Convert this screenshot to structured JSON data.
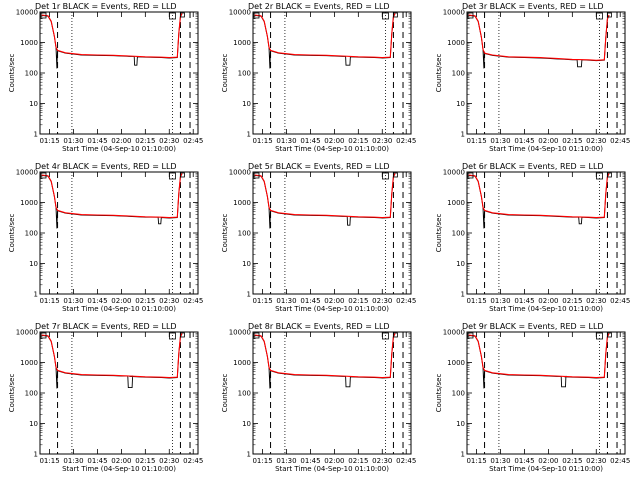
{
  "chart_data": {
    "type": "line",
    "yscale": "log",
    "ylim": [
      1,
      10000
    ],
    "y_ticks": [
      "1",
      "10",
      "100",
      "1000",
      "10000"
    ],
    "x_ticks": [
      "01:15",
      "01:30",
      "01:45",
      "02:00",
      "02:15",
      "02:30",
      "02:45"
    ],
    "x_tick_minutes": [
      75,
      90,
      105,
      120,
      135,
      150,
      165
    ],
    "xlim_minutes": [
      69,
      168
    ],
    "ylabel": "Counts/sec",
    "xlabel": "Start Time (04-Sep-10 01:10:00)",
    "colors": {
      "events": "#000000",
      "lld": "#ff0000"
    },
    "vlines_minutes": {
      "dashed": [
        80,
        157,
        163
      ],
      "dotted": [
        89,
        152
      ]
    },
    "panels": [
      {
        "title": "Det 1r BLACK = Events, RED = LLD",
        "x": [
          70,
          74,
          76,
          78,
          79,
          80,
          85,
          95,
          105,
          115,
          120,
          125,
          130,
          135,
          145,
          150,
          155,
          156,
          157,
          158
        ],
        "values": [
          8000,
          7500,
          5000,
          1600,
          700,
          550,
          460,
          400,
          390,
          380,
          370,
          360,
          350,
          340,
          330,
          320,
          330,
          2000,
          7000,
          9000
        ],
        "dip": {
          "x": [
            128,
            130
          ],
          "value": 180
        }
      },
      {
        "title": "Det 2r BLACK = Events, RED = LLD",
        "x": [
          70,
          74,
          76,
          78,
          79,
          80,
          85,
          95,
          105,
          115,
          120,
          125,
          130,
          135,
          145,
          150,
          155,
          156,
          157,
          158
        ],
        "values": [
          8000,
          7500,
          5000,
          1600,
          700,
          550,
          460,
          400,
          390,
          380,
          370,
          360,
          350,
          340,
          330,
          320,
          330,
          2000,
          7000,
          9000
        ],
        "dip": {
          "x": [
            127,
            130
          ],
          "value": 180
        }
      },
      {
        "title": "Det 3r BLACK = Events, RED = LLD",
        "x": [
          70,
          74,
          76,
          78,
          79,
          80,
          85,
          95,
          105,
          115,
          120,
          125,
          130,
          135,
          145,
          150,
          155,
          156,
          157,
          158
        ],
        "values": [
          8000,
          7500,
          5000,
          1500,
          600,
          450,
          390,
          340,
          330,
          320,
          310,
          300,
          290,
          280,
          270,
          260,
          270,
          1500,
          6000,
          8000
        ],
        "dip": {
          "x": [
            138,
            141
          ],
          "value": 160
        }
      },
      {
        "title": "Det 4r BLACK = Events, RED = LLD",
        "x": [
          70,
          74,
          76,
          78,
          79,
          80,
          85,
          95,
          105,
          115,
          120,
          125,
          130,
          135,
          145,
          150,
          155,
          156,
          157,
          158
        ],
        "values": [
          8000,
          7500,
          5000,
          1600,
          700,
          550,
          460,
          400,
          390,
          380,
          370,
          360,
          350,
          340,
          330,
          320,
          330,
          2000,
          7000,
          9000
        ],
        "dip": {
          "x": [
            143,
            145
          ],
          "value": 200
        }
      },
      {
        "title": "Det 5r BLACK = Events, RED = LLD",
        "x": [
          70,
          74,
          76,
          78,
          79,
          80,
          85,
          95,
          105,
          115,
          120,
          125,
          130,
          135,
          145,
          150,
          155,
          156,
          157,
          158
        ],
        "values": [
          8000,
          7500,
          5000,
          1600,
          700,
          550,
          460,
          400,
          390,
          380,
          370,
          360,
          350,
          340,
          330,
          320,
          330,
          2000,
          7000,
          9000
        ],
        "dip": {
          "x": [
            128,
            130
          ],
          "value": 180
        }
      },
      {
        "title": "Det 6r BLACK = Events, RED = LLD",
        "x": [
          70,
          74,
          76,
          78,
          79,
          80,
          85,
          95,
          105,
          115,
          120,
          125,
          130,
          135,
          145,
          150,
          155,
          156,
          157,
          158
        ],
        "values": [
          8000,
          7500,
          5000,
          1600,
          700,
          550,
          460,
          400,
          390,
          380,
          370,
          360,
          350,
          340,
          330,
          320,
          330,
          2000,
          7000,
          9000
        ],
        "dip": {
          "x": [
            139,
            141
          ],
          "value": 200
        }
      },
      {
        "title": "Det 7r BLACK = Events, RED = LLD",
        "x": [
          70,
          74,
          76,
          78,
          79,
          80,
          85,
          95,
          105,
          115,
          120,
          125,
          130,
          135,
          145,
          150,
          155,
          156,
          157,
          158
        ],
        "values": [
          8000,
          7500,
          5000,
          1600,
          700,
          550,
          460,
          400,
          390,
          380,
          370,
          360,
          350,
          340,
          330,
          320,
          330,
          2000,
          7000,
          9000
        ],
        "dip": {
          "x": [
            124,
            127
          ],
          "value": 150
        }
      },
      {
        "title": "Det 8r BLACK = Events, RED = LLD",
        "x": [
          70,
          74,
          76,
          78,
          79,
          80,
          85,
          95,
          105,
          115,
          120,
          125,
          130,
          135,
          145,
          150,
          155,
          156,
          157,
          158
        ],
        "values": [
          8000,
          7500,
          5000,
          1600,
          700,
          550,
          460,
          400,
          390,
          380,
          370,
          360,
          350,
          340,
          330,
          320,
          330,
          2000,
          7000,
          9000
        ],
        "dip": {
          "x": [
            127,
            130
          ],
          "value": 160
        }
      },
      {
        "title": "Det 9r BLACK = Events, RED = LLD",
        "x": [
          70,
          74,
          76,
          78,
          79,
          80,
          85,
          95,
          105,
          115,
          120,
          125,
          130,
          135,
          145,
          150,
          155,
          156,
          157,
          158
        ],
        "values": [
          8000,
          7500,
          5000,
          1600,
          700,
          550,
          460,
          400,
          390,
          380,
          370,
          360,
          350,
          340,
          330,
          320,
          330,
          2000,
          7000,
          9000
        ],
        "dip": {
          "x": [
            128,
            131
          ],
          "value": 160
        }
      }
    ]
  }
}
